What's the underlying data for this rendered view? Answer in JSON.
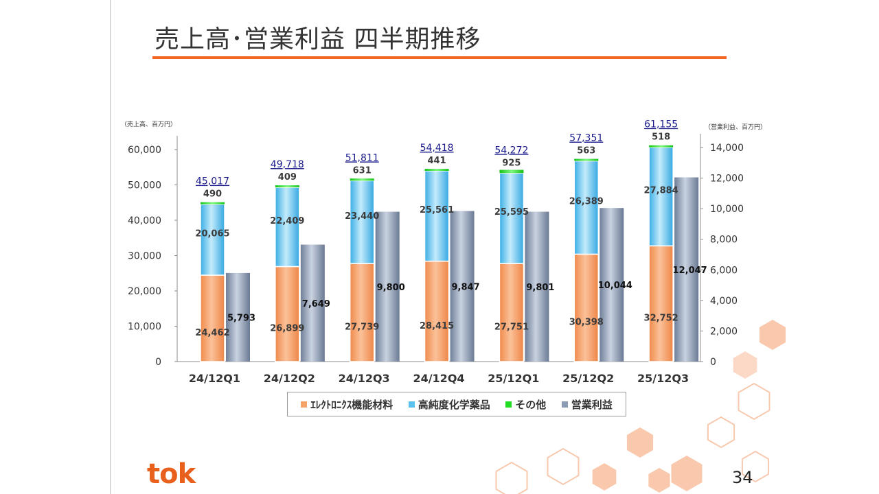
{
  "slide": {
    "title": "売上高･営業利益 四半期推移",
    "page_number": "34",
    "logo_text": "tok",
    "accent_color": "#f26522",
    "brand_color": "#e8601c"
  },
  "legend": {
    "items": [
      {
        "label": "ｴﾚｸﾄﾛﾆｸｽ機能材料",
        "color": "#f5a26b"
      },
      {
        "label": "高純度化学薬品",
        "color": "#5dc1ee"
      },
      {
        "label": "その他",
        "color": "#22dd22"
      },
      {
        "label": "営業利益",
        "color": "#8b9bb4"
      }
    ]
  },
  "chart_data": {
    "type": "bar",
    "categories": [
      "24/12Q1",
      "24/12Q2",
      "24/12Q3",
      "24/12Q4",
      "25/12Q1",
      "25/12Q2",
      "25/12Q3"
    ],
    "stacked_series": [
      {
        "name": "ｴﾚｸﾄﾛﾆｸｽ機能材料",
        "values": [
          24462,
          26899,
          27739,
          28415,
          27751,
          30398,
          32752
        ],
        "labels": [
          "24,462",
          "26,899",
          "27,739",
          "28,415",
          "27,751",
          "30,398",
          "32,752"
        ],
        "color": "#f5a26b"
      },
      {
        "name": "高純度化学薬品",
        "values": [
          20065,
          22409,
          23440,
          25561,
          25595,
          26389,
          27884
        ],
        "labels": [
          "20,065",
          "22,409",
          "23,440",
          "25,561",
          "25,595",
          "26,389",
          "27,884"
        ],
        "color": "#5dc1ee"
      },
      {
        "name": "その他",
        "values": [
          490,
          409,
          631,
          441,
          925,
          563,
          518
        ],
        "labels": [
          "490",
          "409",
          "631",
          "441",
          "925",
          "563",
          "518"
        ],
        "color": "#22dd22"
      }
    ],
    "totals": [
      45017,
      49718,
      51811,
      54418,
      54272,
      57351,
      61155
    ],
    "total_labels": [
      "45,017",
      "49,718",
      "51,811",
      "54,418",
      "54,272",
      "57,351",
      "61,155"
    ],
    "secondary_series": {
      "name": "営業利益",
      "values": [
        5793,
        7649,
        9800,
        9847,
        9801,
        10044,
        12047
      ],
      "labels": [
        "5,793",
        "7,649",
        "9,800",
        "9,847",
        "9,801",
        "10,044",
        "12,047"
      ],
      "color": "#8b9bb4",
      "axis": "right"
    },
    "left_axis": {
      "label": "（売上高、百万円）",
      "min": 0,
      "max": 60000,
      "ticks": [
        0,
        10000,
        20000,
        30000,
        40000,
        50000,
        60000
      ],
      "tick_labels": [
        "0",
        "10,000",
        "20,000",
        "30,000",
        "40,000",
        "50,000",
        "60,000"
      ]
    },
    "right_axis": {
      "label": "（営業利益、百万円）",
      "min": 0,
      "max": 14000,
      "ticks": [
        0,
        2000,
        4000,
        6000,
        8000,
        10000,
        12000,
        14000
      ],
      "tick_labels": [
        "0",
        "2,000",
        "4,000",
        "6,000",
        "8,000",
        "10,000",
        "12,000",
        "14,000"
      ]
    }
  }
}
